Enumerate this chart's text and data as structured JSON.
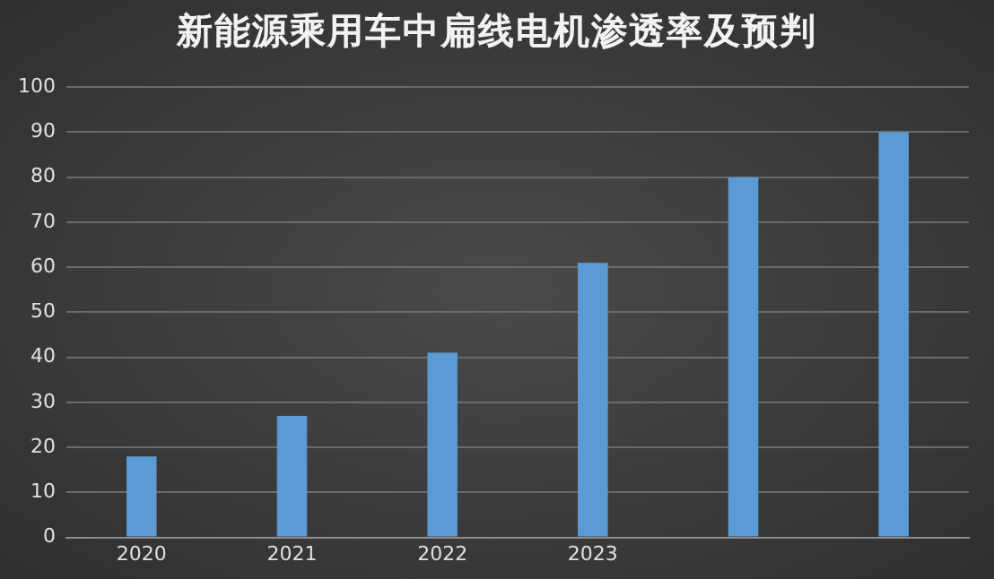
{
  "chart_data": {
    "type": "bar",
    "title": "新能源乘用车中扁线电机渗透率及预判",
    "categories": [
      "2020",
      "2021",
      "2022",
      "2023",
      null,
      null
    ],
    "values": [
      18,
      27,
      41,
      61,
      80,
      90
    ],
    "color": "#5b9bd5",
    "ylim": [
      0,
      100
    ],
    "yticks": [
      0,
      10,
      20,
      30,
      40,
      50,
      60,
      70,
      80,
      90,
      100
    ],
    "grid": "y",
    "legend": false
  }
}
